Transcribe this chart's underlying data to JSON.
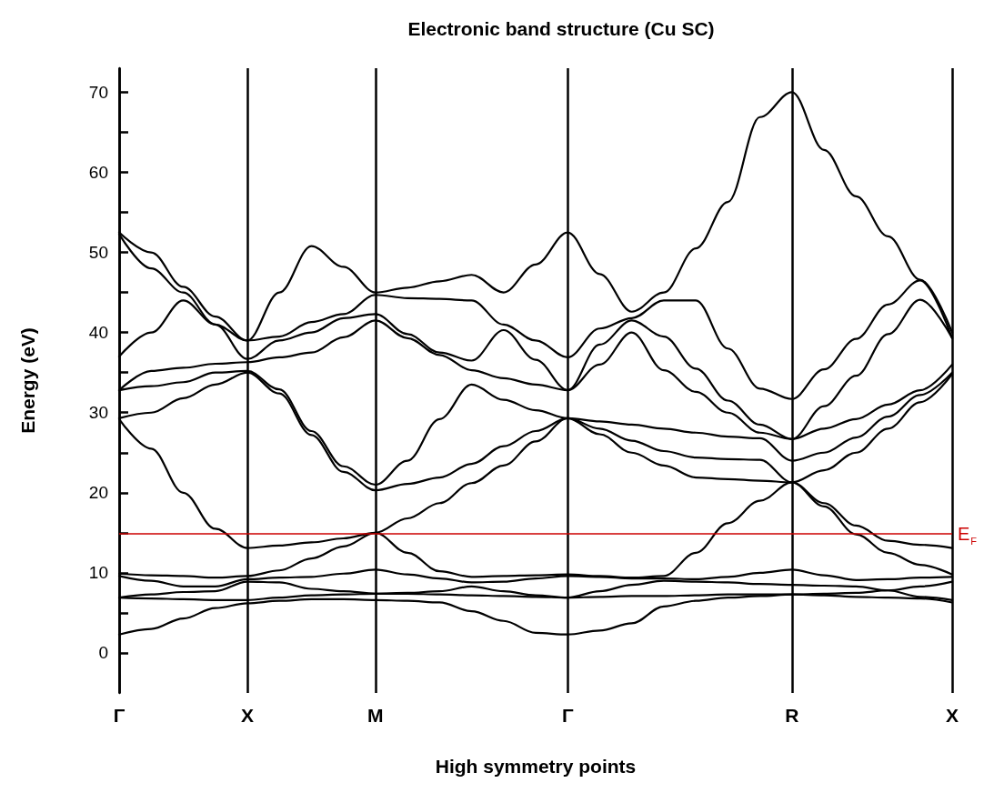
{
  "chart_data": {
    "type": "line",
    "title": "Electronic band structure (Cu SC)",
    "xlabel": "High symmetry points",
    "ylabel": "Energy (eV)",
    "categories": [
      "Γ",
      null,
      null,
      null,
      "X",
      null,
      null,
      null,
      "M",
      null,
      null,
      null,
      null,
      null,
      "Γ",
      null,
      null,
      null,
      null,
      null,
      null,
      "R",
      null,
      null,
      null,
      null,
      "X"
    ],
    "ylim": [
      -5,
      73
    ],
    "yticks": [
      0,
      {
        "value": 5,
        "label": null
      },
      10,
      {
        "value": 15,
        "label": null
      },
      20,
      {
        "value": 25,
        "label": null
      },
      30,
      {
        "value": 35,
        "label": null
      },
      40,
      {
        "value": 45,
        "label": null
      },
      50,
      {
        "value": 55,
        "label": null
      },
      60,
      {
        "value": 65,
        "label": null
      },
      70
    ],
    "grid": "x",
    "marker": "none",
    "line_style": "solid",
    "ref_lines": [
      {
        "axis": "y",
        "value": 14.9,
        "label": "E$_{F}$",
        "color": "#cc0000"
      }
    ],
    "series": [
      {
        "color": "#000000",
        "values": [
          2.3,
          3.0,
          4.3,
          5.6,
          6.2,
          6.5,
          6.7,
          6.7,
          6.6,
          6.5,
          6.3,
          5.2,
          4.0,
          2.5,
          2.3,
          2.8,
          3.7,
          5.8,
          6.5,
          6.9,
          7.1,
          7.3,
          7.2,
          7.0,
          6.9,
          6.8,
          6.3
        ]
      },
      {
        "color": "#000000",
        "values": [
          6.9,
          6.8,
          6.7,
          6.6,
          6.6,
          6.9,
          7.2,
          7.3,
          7.4,
          7.4,
          7.3,
          7.2,
          7.1,
          7.0,
          6.9,
          7.0,
          7.1,
          7.1,
          7.2,
          7.3,
          7.3,
          7.3,
          7.4,
          7.5,
          7.8,
          7.0,
          6.6
        ]
      },
      {
        "color": "#000000",
        "values": [
          6.9,
          7.3,
          7.6,
          7.7,
          8.9,
          8.8,
          8.0,
          7.7,
          7.4,
          7.5,
          7.7,
          8.3,
          7.7,
          7.2,
          6.9,
          7.7,
          8.5,
          9.0,
          8.9,
          8.8,
          8.6,
          8.5,
          8.4,
          8.3,
          7.8,
          8.3,
          8.9
        ]
      },
      {
        "color": "#000000",
        "values": [
          9.6,
          9.0,
          8.3,
          8.3,
          9.2,
          9.4,
          9.5,
          9.9,
          10.4,
          9.8,
          9.3,
          8.8,
          8.9,
          9.3,
          9.6,
          9.5,
          9.3,
          9.3,
          9.2,
          9.5,
          10.0,
          10.4,
          9.7,
          9.1,
          9.2,
          9.4,
          9.5
        ]
      },
      {
        "color": "#000000",
        "values": [
          9.9,
          9.7,
          9.6,
          9.4,
          9.6,
          10.3,
          11.8,
          13.3,
          15.0,
          12.5,
          10.2,
          9.5,
          9.6,
          9.7,
          9.8,
          9.6,
          9.4,
          9.6,
          12.5,
          16.2,
          19.0,
          21.3,
          18.3,
          14.8,
          12.5,
          11.0,
          9.8
        ]
      },
      {
        "color": "#000000",
        "values": [
          29.2,
          25.5,
          20.0,
          15.5,
          13.1,
          13.4,
          13.8,
          14.3,
          15.0,
          16.8,
          18.7,
          21.2,
          23.4,
          26.4,
          29.3,
          27.3,
          25.0,
          23.4,
          21.9,
          21.7,
          21.5,
          21.3,
          18.7,
          15.9,
          14.0,
          13.5,
          13.1
        ]
      },
      {
        "color": "#000000",
        "values": [
          29.3,
          30.0,
          31.8,
          33.5,
          35.0,
          32.4,
          27.2,
          22.6,
          20.3,
          21.1,
          21.9,
          23.6,
          25.8,
          27.7,
          29.3,
          28.0,
          26.5,
          25.2,
          24.4,
          24.2,
          24.1,
          21.3,
          22.8,
          25.0,
          28.0,
          31.3,
          34.8
        ]
      },
      {
        "color": "#000000",
        "values": [
          32.8,
          33.3,
          33.8,
          35.0,
          35.2,
          32.9,
          27.7,
          23.3,
          21.0,
          24.0,
          29.2,
          33.5,
          31.6,
          30.3,
          29.3,
          28.9,
          28.5,
          28.0,
          27.5,
          27.0,
          26.8,
          24.0,
          25.0,
          26.9,
          29.5,
          32.2,
          35.0
        ]
      },
      {
        "color": "#000000",
        "values": [
          32.8,
          35.2,
          35.6,
          36.1,
          36.3,
          36.9,
          37.5,
          39.4,
          41.5,
          39.3,
          37.2,
          35.3,
          34.3,
          33.5,
          32.8,
          36.0,
          40.0,
          35.3,
          32.6,
          30.0,
          27.5,
          26.7,
          28.0,
          29.2,
          31.0,
          32.8,
          36.0
        ]
      },
      {
        "color": "#000000",
        "values": [
          37.0,
          40.0,
          44.0,
          41.0,
          36.7,
          39.0,
          40.0,
          41.8,
          42.3,
          39.8,
          37.5,
          36.5,
          40.3,
          36.6,
          32.8,
          38.5,
          41.5,
          39.5,
          35.5,
          31.5,
          28.5,
          26.7,
          30.8,
          34.6,
          39.8,
          44.1,
          39.3
        ]
      },
      {
        "color": "#000000",
        "values": [
          52.3,
          48.0,
          45.0,
          41.0,
          39.0,
          39.5,
          41.3,
          42.3,
          44.7,
          44.3,
          44.2,
          44.0,
          41.0,
          39.0,
          36.9,
          40.5,
          41.8,
          44.0,
          44.0,
          38.0,
          33.0,
          31.7,
          35.4,
          39.2,
          43.5,
          46.5,
          39.3
        ]
      },
      {
        "color": "#000000",
        "values": [
          52.5,
          50.0,
          45.7,
          42.0,
          39.0,
          45.0,
          50.8,
          48.2,
          45.0,
          45.6,
          46.4,
          47.2,
          45.0,
          48.5,
          52.5,
          47.3,
          42.6,
          45.0,
          50.5,
          56.3,
          66.9,
          70.0,
          62.8,
          57.0,
          52.0,
          46.6,
          40.0
        ]
      }
    ]
  }
}
